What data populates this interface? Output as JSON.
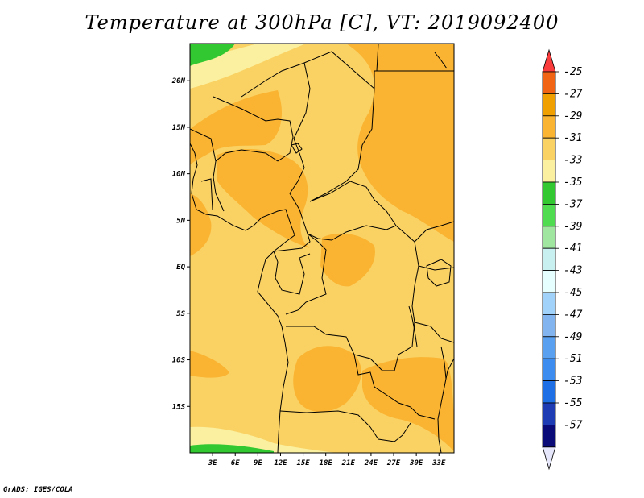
{
  "title": "Temperature at 300hPa [C], VT: 2019092400",
  "credit": "GrADS: IGES/COLA",
  "map": {
    "lon_range_deg": [
      0,
      35
    ],
    "lat_range_deg": [
      -20,
      24
    ],
    "lat_ticks": [
      {
        "value": 20,
        "label": "20N"
      },
      {
        "value": 15,
        "label": "15N"
      },
      {
        "value": 10,
        "label": "10N"
      },
      {
        "value": 5,
        "label": "5N"
      },
      {
        "value": 0,
        "label": "EQ"
      },
      {
        "value": -5,
        "label": "5S"
      },
      {
        "value": -10,
        "label": "10S"
      },
      {
        "value": -15,
        "label": "15S"
      }
    ],
    "lon_ticks": [
      {
        "value": 3,
        "label": "3E"
      },
      {
        "value": 6,
        "label": "6E"
      },
      {
        "value": 9,
        "label": "9E"
      },
      {
        "value": 12,
        "label": "12E"
      },
      {
        "value": 15,
        "label": "15E"
      },
      {
        "value": 18,
        "label": "18E"
      },
      {
        "value": 21,
        "label": "21E"
      },
      {
        "value": 24,
        "label": "24E"
      },
      {
        "value": 27,
        "label": "27E"
      },
      {
        "value": 30,
        "label": "30E"
      },
      {
        "value": 33,
        "label": "33E"
      }
    ]
  },
  "colorbar": {
    "labels": [
      "-25",
      "-27",
      "-29",
      "-31",
      "-33",
      "-35",
      "-37",
      "-39",
      "-41",
      "-43",
      "-45",
      "-47",
      "-49",
      "-51",
      "-53",
      "-55",
      "-57"
    ],
    "colors": [
      "#fa3c3c",
      "#f06414",
      "#f0a000",
      "#fab432",
      "#fad264",
      "#faf0a0",
      "#32c832",
      "#50dc50",
      "#a0e6a0",
      "#c8f0f0",
      "#e6ffff",
      "#a0d2fa",
      "#82b4f0",
      "#5aa0f0",
      "#3c8cf0",
      "#1e6ee6",
      "#1e3cb4",
      "#0a0a78",
      "#e6e6fa"
    ],
    "field_colors": {
      "background": "#fad264",
      "warm": "#fab432",
      "cool": "#faf0a0",
      "cold": "#32c832"
    }
  }
}
